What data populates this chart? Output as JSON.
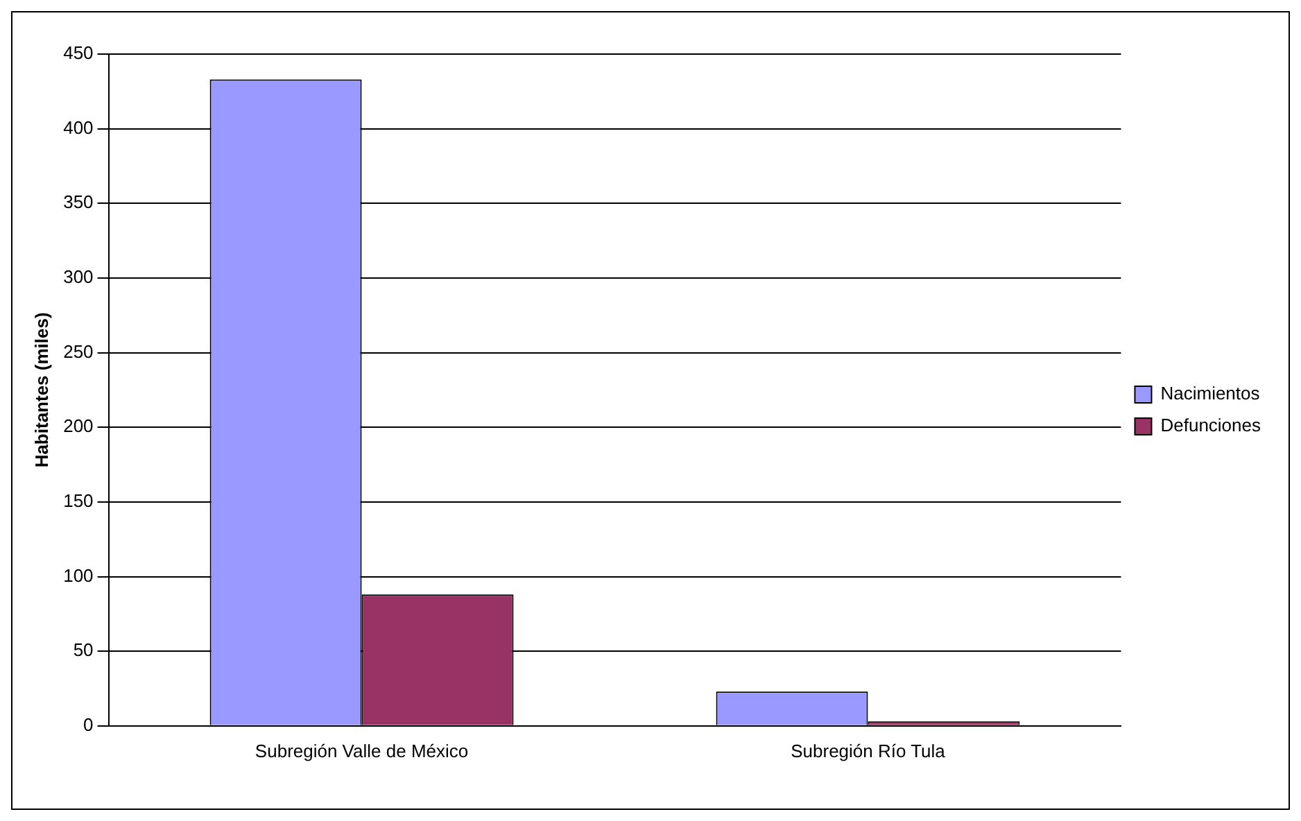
{
  "chart_data": {
    "type": "bar",
    "ylabel": "Habitantes (miles)",
    "categories": [
      "Subregión Valle de México",
      "Subregión Río Tula"
    ],
    "series": [
      {
        "name": "Nacimientos",
        "color": "#9999ff",
        "values": [
          433,
          23
        ]
      },
      {
        "name": "Defunciones",
        "color": "#993366",
        "values": [
          88,
          3
        ]
      }
    ],
    "ylim": [
      0,
      450
    ],
    "yticks": [
      0,
      50,
      100,
      150,
      200,
      250,
      300,
      350,
      400,
      450
    ],
    "grid": "y",
    "legend": "right"
  }
}
